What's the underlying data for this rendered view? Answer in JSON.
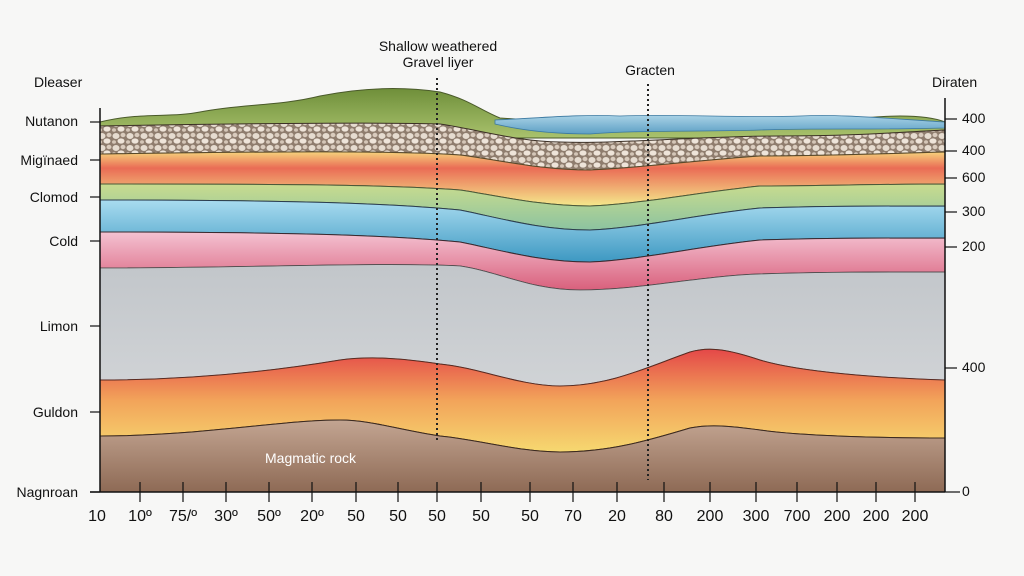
{
  "header": {
    "left_title": "Dleaser",
    "right_title": "Diraten",
    "annotation_1_line1": "Shallow weathered",
    "annotation_1_line2": "Gravel liyer",
    "annotation_2": "Gracten"
  },
  "left_axis_labels": [
    "Nutanon",
    "Migïnaed",
    "Clomod",
    "Cold",
    "Limon",
    "Guldon",
    "Nagnroan"
  ],
  "right_axis_labels": [
    "400",
    "400",
    "600",
    "300",
    "200",
    "400",
    "0"
  ],
  "x_axis_labels": [
    "10",
    "10º",
    "75/º",
    "30º",
    "50º",
    "20º",
    "50",
    "50",
    "50",
    "50",
    "50",
    "70",
    "20",
    "80",
    "200",
    "300",
    "700",
    "200",
    "200",
    "200"
  ],
  "layer_labels": {
    "magmatic": "Magmatic rock"
  },
  "colors": {
    "grass": "#7d9a45",
    "gravel": "#c9b8a6",
    "yellow": "#f4d37a",
    "red": "#e66a57",
    "green": "#b9cf86",
    "blue": "#6fb4d6",
    "pink": "#e58ca3",
    "gray": "#c4c7cb",
    "orange": "#f0a050",
    "brown": "#a07f6a"
  }
}
